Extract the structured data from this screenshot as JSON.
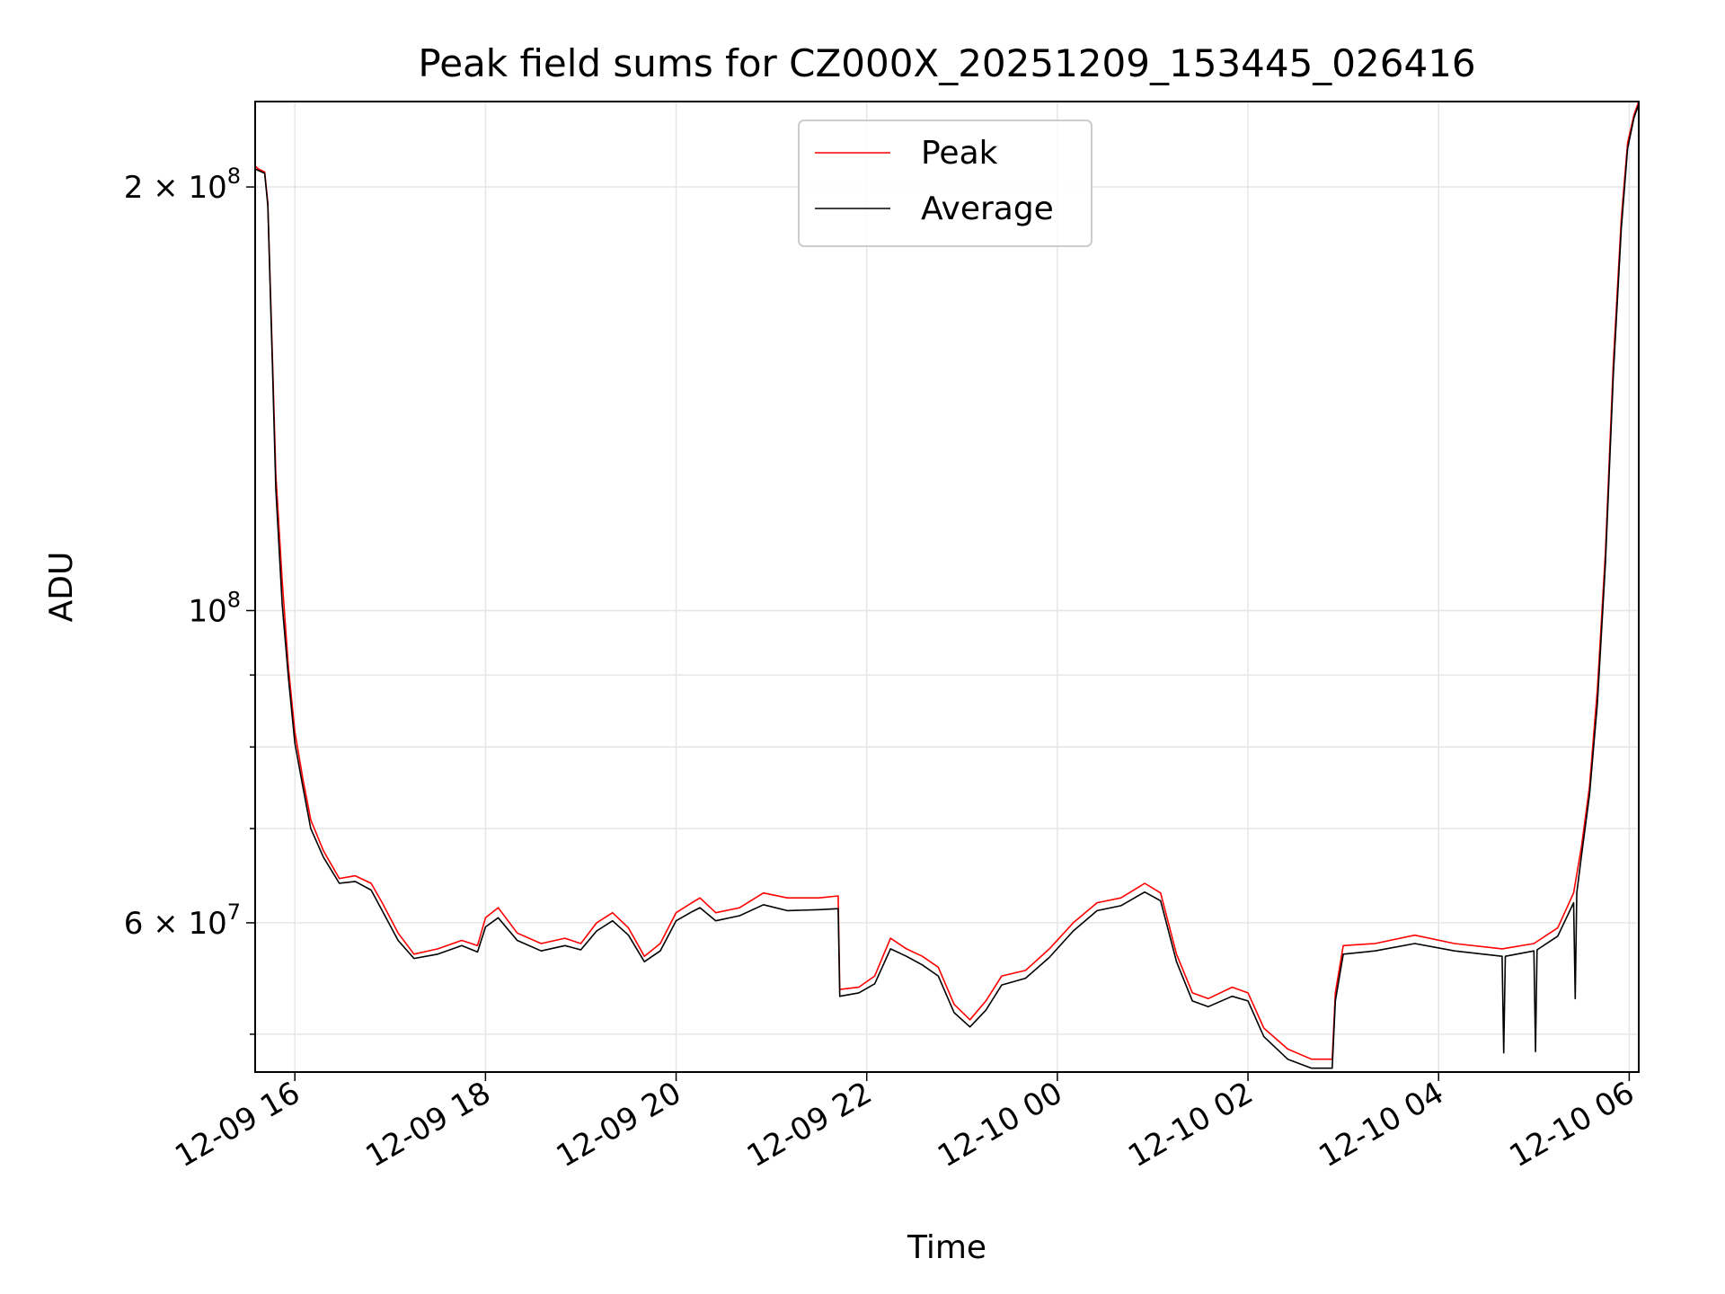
{
  "chart_data": {
    "type": "line",
    "title": "Peak field sums for CZ000X_20251209_153445_026416",
    "xlabel": "Time",
    "ylabel": "ADU",
    "y_scale": "log",
    "grid": true,
    "legend_placement": "upper center",
    "xlim": [
      "2025-12-09 15:35",
      "2025-12-10 06:06"
    ],
    "ylim": [
      47000000,
      230000000
    ],
    "x_ticks": [
      {
        "value": "2025-12-09 16:00",
        "label": "12-09 16"
      },
      {
        "value": "2025-12-09 18:00",
        "label": "12-09 18"
      },
      {
        "value": "2025-12-09 20:00",
        "label": "12-09 20"
      },
      {
        "value": "2025-12-09 22:00",
        "label": "12-09 22"
      },
      {
        "value": "2025-12-10 00:00",
        "label": "12-10 00"
      },
      {
        "value": "2025-12-10 02:00",
        "label": "12-10 02"
      },
      {
        "value": "2025-12-10 04:00",
        "label": "12-10 04"
      },
      {
        "value": "2025-12-10 06:00",
        "label": "12-10 06"
      }
    ],
    "y_ticks_major": [
      {
        "value": 60000000,
        "base": "6 × 10",
        "exp": "7"
      },
      {
        "value": 100000000,
        "base": "10",
        "exp": "8"
      },
      {
        "value": 200000000,
        "base": "2 × 10",
        "exp": "8"
      }
    ],
    "y_ticks_minor": [
      50000000,
      70000000,
      80000000,
      90000000
    ],
    "series": [
      {
        "name": "Peak",
        "color": "#ff0000",
        "points": [
          [
            "2025-12-09 15:35",
            207000000
          ],
          [
            "2025-12-09 15:37",
            206000000
          ],
          [
            "2025-12-09 15:41",
            205000000
          ],
          [
            "2025-12-09 15:43",
            195000000
          ],
          [
            "2025-12-09 15:46",
            150000000
          ],
          [
            "2025-12-09 15:48",
            125000000
          ],
          [
            "2025-12-09 15:52",
            105000000
          ],
          [
            "2025-12-09 15:56",
            91000000
          ],
          [
            "2025-12-09 16:00",
            82000000
          ],
          [
            "2025-12-09 16:05",
            76000000
          ],
          [
            "2025-12-09 16:10",
            71000000
          ],
          [
            "2025-12-09 16:18",
            67500000
          ],
          [
            "2025-12-09 16:28",
            64500000
          ],
          [
            "2025-12-09 16:38",
            64800000
          ],
          [
            "2025-12-09 16:48",
            64000000
          ],
          [
            "2025-12-09 16:55",
            62000000
          ],
          [
            "2025-12-09 17:05",
            59000000
          ],
          [
            "2025-12-09 17:15",
            57000000
          ],
          [
            "2025-12-09 17:30",
            57500000
          ],
          [
            "2025-12-09 17:45",
            58300000
          ],
          [
            "2025-12-09 17:55",
            57800000
          ],
          [
            "2025-12-09 18:00",
            60500000
          ],
          [
            "2025-12-09 18:08",
            61500000
          ],
          [
            "2025-12-09 18:20",
            59000000
          ],
          [
            "2025-12-09 18:35",
            58000000
          ],
          [
            "2025-12-09 18:50",
            58500000
          ],
          [
            "2025-12-09 19:00",
            58000000
          ],
          [
            "2025-12-09 19:10",
            60000000
          ],
          [
            "2025-12-09 19:20",
            61000000
          ],
          [
            "2025-12-09 19:30",
            59500000
          ],
          [
            "2025-12-09 19:40",
            56800000
          ],
          [
            "2025-12-09 19:50",
            58000000
          ],
          [
            "2025-12-09 20:00",
            61000000
          ],
          [
            "2025-12-09 20:10",
            62000000
          ],
          [
            "2025-12-09 20:15",
            62500000
          ],
          [
            "2025-12-09 20:25",
            61000000
          ],
          [
            "2025-12-09 20:40",
            61500000
          ],
          [
            "2025-12-09 20:55",
            63000000
          ],
          [
            "2025-12-09 21:10",
            62500000
          ],
          [
            "2025-12-09 21:30",
            62500000
          ],
          [
            "2025-12-09 21:42",
            62700000
          ],
          [
            "2025-12-09 21:43",
            53800000
          ],
          [
            "2025-12-09 21:55",
            54000000
          ],
          [
            "2025-12-09 22:05",
            55000000
          ],
          [
            "2025-12-09 22:15",
            58500000
          ],
          [
            "2025-12-09 22:25",
            57500000
          ],
          [
            "2025-12-09 22:35",
            56800000
          ],
          [
            "2025-12-09 22:45",
            55800000
          ],
          [
            "2025-12-09 22:55",
            52500000
          ],
          [
            "2025-12-09 23:05",
            51200000
          ],
          [
            "2025-12-09 23:15",
            52800000
          ],
          [
            "2025-12-09 23:25",
            55000000
          ],
          [
            "2025-12-09 23:40",
            55500000
          ],
          [
            "2025-12-09 23:55",
            57500000
          ],
          [
            "2025-12-10 00:10",
            60000000
          ],
          [
            "2025-12-10 00:25",
            62000000
          ],
          [
            "2025-12-10 00:40",
            62500000
          ],
          [
            "2025-12-10 00:55",
            64000000
          ],
          [
            "2025-12-10 01:05",
            63000000
          ],
          [
            "2025-12-10 01:15",
            57000000
          ],
          [
            "2025-12-10 01:25",
            53500000
          ],
          [
            "2025-12-10 01:35",
            53000000
          ],
          [
            "2025-12-10 01:50",
            54000000
          ],
          [
            "2025-12-10 02:00",
            53500000
          ],
          [
            "2025-12-10 02:10",
            50500000
          ],
          [
            "2025-12-10 02:25",
            48800000
          ],
          [
            "2025-12-10 02:40",
            48000000
          ],
          [
            "2025-12-10 02:53",
            48000000
          ],
          [
            "2025-12-10 02:55",
            53500000
          ],
          [
            "2025-12-10 03:00",
            57800000
          ],
          [
            "2025-12-10 03:20",
            58000000
          ],
          [
            "2025-12-10 03:45",
            58800000
          ],
          [
            "2025-12-10 04:10",
            58000000
          ],
          [
            "2025-12-10 04:40",
            57500000
          ],
          [
            "2025-12-10 05:00",
            58000000
          ],
          [
            "2025-12-10 05:15",
            59500000
          ],
          [
            "2025-12-10 05:25",
            63000000
          ],
          [
            "2025-12-10 05:30",
            68000000
          ],
          [
            "2025-12-10 05:35",
            75000000
          ],
          [
            "2025-12-10 05:40",
            88000000
          ],
          [
            "2025-12-10 05:45",
            110000000
          ],
          [
            "2025-12-10 05:50",
            150000000
          ],
          [
            "2025-12-10 05:55",
            190000000
          ],
          [
            "2025-12-10 05:59",
            215000000
          ],
          [
            "2025-12-10 06:03",
            225000000
          ],
          [
            "2025-12-10 06:06",
            230000000
          ]
        ]
      },
      {
        "name": "Average",
        "color": "#000000",
        "points": [
          [
            "2025-12-09 15:35",
            206000000
          ],
          [
            "2025-12-09 15:37",
            205500000
          ],
          [
            "2025-12-09 15:41",
            204500000
          ],
          [
            "2025-12-09 15:43",
            194000000
          ],
          [
            "2025-12-09 15:46",
            148000000
          ],
          [
            "2025-12-09 15:48",
            122000000
          ],
          [
            "2025-12-09 15:52",
            101000000
          ],
          [
            "2025-12-09 15:56",
            89500000
          ],
          [
            "2025-12-09 16:00",
            80500000
          ],
          [
            "2025-12-09 16:05",
            75000000
          ],
          [
            "2025-12-09 16:10",
            70000000
          ],
          [
            "2025-12-09 16:18",
            66800000
          ],
          [
            "2025-12-09 16:28",
            64000000
          ],
          [
            "2025-12-09 16:38",
            64200000
          ],
          [
            "2025-12-09 16:48",
            63300000
          ],
          [
            "2025-12-09 16:55",
            61200000
          ],
          [
            "2025-12-09 17:05",
            58300000
          ],
          [
            "2025-12-09 17:15",
            56600000
          ],
          [
            "2025-12-09 17:30",
            57000000
          ],
          [
            "2025-12-09 17:45",
            57800000
          ],
          [
            "2025-12-09 17:55",
            57200000
          ],
          [
            "2025-12-09 18:00",
            59600000
          ],
          [
            "2025-12-09 18:08",
            60500000
          ],
          [
            "2025-12-09 18:20",
            58300000
          ],
          [
            "2025-12-09 18:35",
            57300000
          ],
          [
            "2025-12-09 18:50",
            57800000
          ],
          [
            "2025-12-09 19:00",
            57400000
          ],
          [
            "2025-12-09 19:10",
            59200000
          ],
          [
            "2025-12-09 19:20",
            60200000
          ],
          [
            "2025-12-09 19:30",
            58800000
          ],
          [
            "2025-12-09 19:40",
            56300000
          ],
          [
            "2025-12-09 19:50",
            57300000
          ],
          [
            "2025-12-09 20:00",
            60200000
          ],
          [
            "2025-12-09 20:10",
            61100000
          ],
          [
            "2025-12-09 20:15",
            61500000
          ],
          [
            "2025-12-09 20:25",
            60200000
          ],
          [
            "2025-12-09 20:40",
            60700000
          ],
          [
            "2025-12-09 20:55",
            61800000
          ],
          [
            "2025-12-09 21:10",
            61200000
          ],
          [
            "2025-12-09 21:30",
            61300000
          ],
          [
            "2025-12-09 21:42",
            61400000
          ],
          [
            "2025-12-09 21:43",
            53200000
          ],
          [
            "2025-12-09 21:55",
            53500000
          ],
          [
            "2025-12-09 22:05",
            54300000
          ],
          [
            "2025-12-09 22:15",
            57500000
          ],
          [
            "2025-12-09 22:25",
            56800000
          ],
          [
            "2025-12-09 22:35",
            56000000
          ],
          [
            "2025-12-09 22:45",
            55000000
          ],
          [
            "2025-12-09 22:55",
            51800000
          ],
          [
            "2025-12-09 23:05",
            50600000
          ],
          [
            "2025-12-09 23:15",
            52000000
          ],
          [
            "2025-12-09 23:25",
            54200000
          ],
          [
            "2025-12-09 23:40",
            54800000
          ],
          [
            "2025-12-09 23:55",
            56700000
          ],
          [
            "2025-12-10 00:10",
            59200000
          ],
          [
            "2025-12-10 00:25",
            61200000
          ],
          [
            "2025-12-10 00:40",
            61700000
          ],
          [
            "2025-12-10 00:55",
            63100000
          ],
          [
            "2025-12-10 01:05",
            62200000
          ],
          [
            "2025-12-10 01:15",
            56300000
          ],
          [
            "2025-12-10 01:25",
            52800000
          ],
          [
            "2025-12-10 01:35",
            52300000
          ],
          [
            "2025-12-10 01:50",
            53200000
          ],
          [
            "2025-12-10 02:00",
            52800000
          ],
          [
            "2025-12-10 02:10",
            49800000
          ],
          [
            "2025-12-10 02:25",
            48000000
          ],
          [
            "2025-12-10 02:40",
            47300000
          ],
          [
            "2025-12-10 02:53",
            47300000
          ],
          [
            "2025-12-10 02:55",
            52800000
          ],
          [
            "2025-12-10 03:00",
            57000000
          ],
          [
            "2025-12-10 03:20",
            57300000
          ],
          [
            "2025-12-10 03:45",
            58000000
          ],
          [
            "2025-12-10 04:10",
            57300000
          ],
          [
            "2025-12-10 04:40",
            56800000
          ],
          [
            "2025-12-10 04:41",
            48500000
          ],
          [
            "2025-12-10 04:42",
            56800000
          ],
          [
            "2025-12-10 05:00",
            57300000
          ],
          [
            "2025-12-10 05:01",
            48600000
          ],
          [
            "2025-12-10 05:02",
            57400000
          ],
          [
            "2025-12-10 05:15",
            58700000
          ],
          [
            "2025-12-10 05:25",
            62000000
          ],
          [
            "2025-12-10 05:26",
            53000000
          ],
          [
            "2025-12-10 05:27",
            63000000
          ],
          [
            "2025-12-10 05:30",
            67000000
          ],
          [
            "2025-12-10 05:35",
            74000000
          ],
          [
            "2025-12-10 05:40",
            86000000
          ],
          [
            "2025-12-10 05:45",
            108000000
          ],
          [
            "2025-12-10 05:50",
            147000000
          ],
          [
            "2025-12-10 05:55",
            187000000
          ],
          [
            "2025-12-10 05:59",
            213000000
          ],
          [
            "2025-12-10 06:03",
            224000000
          ],
          [
            "2025-12-10 06:06",
            229000000
          ]
        ]
      }
    ]
  }
}
